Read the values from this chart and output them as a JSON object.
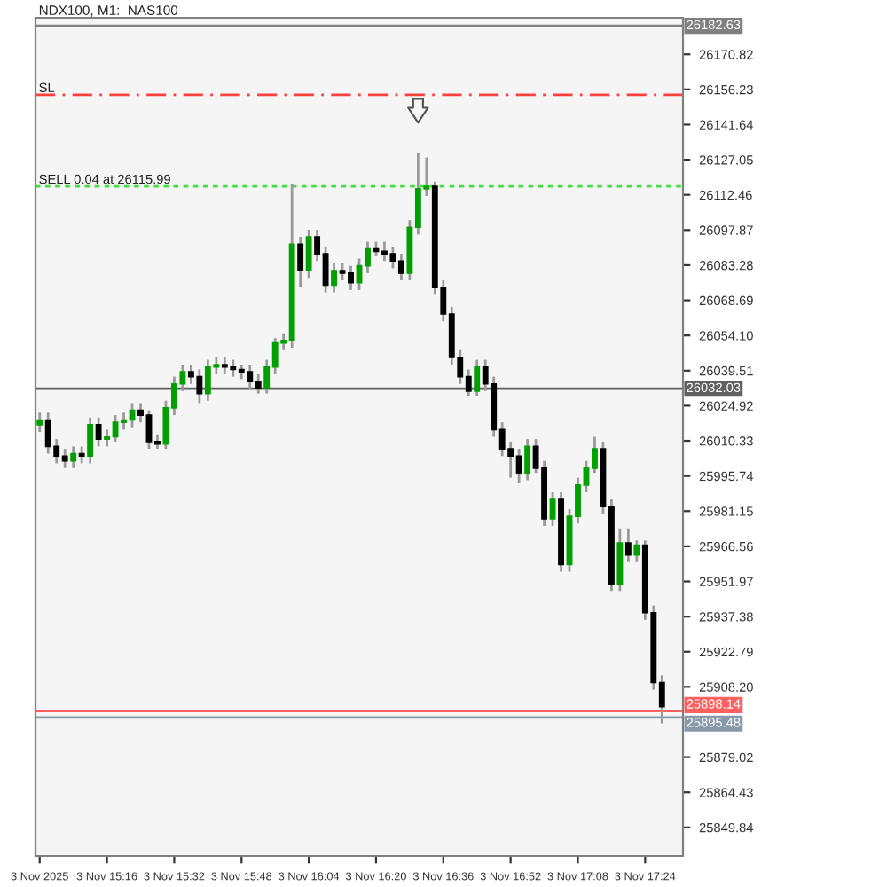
{
  "chart_data": {
    "type": "candlestick",
    "title": "NDX100, M1:  NAS100",
    "categories": [
      "3 Nov 2025",
      null,
      null,
      null,
      null,
      null,
      null,
      null,
      "3 Nov 15:16",
      null,
      null,
      null,
      null,
      null,
      null,
      null,
      "3 Nov 15:32",
      null,
      null,
      null,
      null,
      null,
      null,
      null,
      "3 Nov 15:48",
      null,
      null,
      null,
      null,
      null,
      null,
      null,
      "3 Nov 16:04",
      null,
      null,
      null,
      null,
      null,
      null,
      null,
      "3 Nov 16:20",
      null,
      null,
      null,
      null,
      null,
      null,
      null,
      "3 Nov 16:36",
      null,
      null,
      null,
      null,
      null,
      null,
      null,
      "3 Nov 16:52",
      null,
      null,
      null,
      null,
      null,
      null,
      null,
      "3 Nov 17:08",
      null,
      null,
      null,
      null,
      null,
      null,
      null,
      "3 Nov 17:24",
      null,
      null
    ],
    "ohlc": [
      [
        26017,
        26022,
        26014,
        26019
      ],
      [
        26019,
        26022,
        26005,
        26008
      ],
      [
        26008,
        26011,
        26001,
        26004
      ],
      [
        26004,
        26007,
        25999,
        26002
      ],
      [
        26002,
        26008,
        25999,
        26005
      ],
      [
        26005,
        26008,
        26001,
        26004
      ],
      [
        26004,
        26020,
        26001,
        26017
      ],
      [
        26017,
        26020,
        26008,
        26011
      ],
      [
        26011,
        26015,
        26008,
        26012
      ],
      [
        26012,
        26021,
        26010,
        26018
      ],
      [
        26018,
        26022,
        26015,
        26019
      ],
      [
        26019,
        26026,
        26016,
        26023
      ],
      [
        26023,
        26026,
        26018,
        26021
      ],
      [
        26021,
        26023,
        26007,
        26010
      ],
      [
        26010,
        26013,
        26007,
        26009
      ],
      [
        26009,
        26027,
        26007,
        26024
      ],
      [
        26024,
        26037,
        26021,
        26034
      ],
      [
        26034,
        26042,
        26031,
        26039
      ],
      [
        26039,
        26042,
        26034,
        26037
      ],
      [
        26037,
        26040,
        26026,
        26030
      ],
      [
        26030,
        26044,
        26027,
        26041
      ],
      [
        26041,
        26045,
        26038,
        26042
      ],
      [
        26042,
        26045,
        26038,
        26041
      ],
      [
        26041,
        26044,
        26037,
        26040
      ],
      [
        26040,
        26042,
        26036,
        26039
      ],
      [
        26039,
        26042,
        26032,
        26035
      ],
      [
        26035,
        26038,
        26030,
        26032
      ],
      [
        26032,
        26044,
        26030,
        26041
      ],
      [
        26041,
        26053,
        26038,
        26051
      ],
      [
        26051,
        26055,
        26048,
        26052
      ],
      [
        26052,
        26117,
        26049,
        26092
      ],
      [
        26092,
        26095,
        26074,
        26081
      ],
      [
        26081,
        26098,
        26078,
        26095
      ],
      [
        26095,
        26098,
        26085,
        26088
      ],
      [
        26088,
        26091,
        26072,
        26075
      ],
      [
        26075,
        26084,
        26072,
        26081
      ],
      [
        26081,
        26084,
        26077,
        26080
      ],
      [
        26080,
        26083,
        26073,
        26076
      ],
      [
        26076,
        26086,
        26073,
        26083
      ],
      [
        26083,
        26093,
        26080,
        26090
      ],
      [
        26090,
        26093,
        26087,
        26089
      ],
      [
        26089,
        26093,
        26085,
        26088
      ],
      [
        26088,
        26091,
        26082,
        26085
      ],
      [
        26085,
        26088,
        26077,
        26080
      ],
      [
        26080,
        26102,
        26077,
        26099
      ],
      [
        26099,
        26130,
        26096,
        26115
      ],
      [
        26115,
        26128,
        26112,
        26116
      ],
      [
        26116,
        26118,
        26071,
        26074
      ],
      [
        26074,
        26077,
        26060,
        26063
      ],
      [
        26063,
        26066,
        26042,
        26045
      ],
      [
        26045,
        26048,
        26034,
        26037
      ],
      [
        26037,
        26040,
        26029,
        26031
      ],
      [
        26031,
        26044,
        26029,
        26041
      ],
      [
        26041,
        26044,
        26031,
        26034
      ],
      [
        26034,
        26037,
        26012,
        26015
      ],
      [
        26015,
        26018,
        26004,
        26007
      ],
      [
        26007,
        26010,
        25995,
        26004
      ],
      [
        26004,
        26007,
        25993,
        25997
      ],
      [
        25997,
        26011,
        25994,
        26008
      ],
      [
        26008,
        26011,
        25997,
        25999
      ],
      [
        25999,
        26002,
        25975,
        25978
      ],
      [
        25978,
        25989,
        25975,
        25986
      ],
      [
        25986,
        25989,
        25956,
        25959
      ],
      [
        25959,
        25982,
        25956,
        25979
      ],
      [
        25979,
        25995,
        25976,
        25992
      ],
      [
        25992,
        26002,
        25989,
        25999
      ],
      [
        25999,
        26012,
        25997,
        26007
      ],
      [
        26007,
        26010,
        25980,
        25983
      ],
      [
        25983,
        25986,
        25948,
        25951
      ],
      [
        25951,
        25974,
        25948,
        25968
      ],
      [
        25968,
        25974,
        25960,
        25963
      ],
      [
        25963,
        25969,
        25960,
        25967
      ],
      [
        25967,
        25969,
        25936,
        25939
      ],
      [
        25939,
        25942,
        25907,
        25910
      ],
      [
        25910,
        25913,
        25893,
        25900
      ]
    ],
    "colors": [
      "#00a000",
      "#000000",
      "#000000",
      "#000000",
      "#00a000",
      "#000000",
      "#00a000",
      "#000000",
      "#00a000",
      "#00a000",
      "#00a000",
      "#00a000",
      "#000000",
      "#000000",
      "#000000",
      "#00a000",
      "#00a000",
      "#00a000",
      "#000000",
      "#000000",
      "#00a000",
      "#00a000",
      "#000000",
      "#000000",
      "#000000",
      "#000000",
      "#000000",
      "#00a000",
      "#00a000",
      "#00a000",
      "#00a000",
      "#000000",
      "#00a000",
      "#000000",
      "#000000",
      "#00a000",
      "#000000",
      "#000000",
      "#00a000",
      "#00a000",
      "#000000",
      "#000000",
      "#000000",
      "#000000",
      "#00a000",
      "#00a000",
      "#00a000",
      "#000000",
      "#000000",
      "#000000",
      "#000000",
      "#000000",
      "#00a000",
      "#000000",
      "#000000",
      "#000000",
      "#000000",
      "#000000",
      "#00a000",
      "#000000",
      "#000000",
      "#00a000",
      "#000000",
      "#00a000",
      "#00a000",
      "#00a000",
      "#00a000",
      "#000000",
      "#000000",
      "#00a000",
      "#000000",
      "#00a000",
      "#000000",
      "#000000",
      "#000000"
    ],
    "ylim": [
      25838,
      26186
    ],
    "yticks": [
      {
        "value": 26170.82,
        "label": "26170.82"
      },
      {
        "value": 26156.23,
        "label": "26156.23"
      },
      {
        "value": 26141.64,
        "label": "26141.64"
      },
      {
        "value": 26127.05,
        "label": "26127.05"
      },
      {
        "value": 26112.46,
        "label": "26112.46"
      },
      {
        "value": 26097.87,
        "label": "26097.87"
      },
      {
        "value": 26083.28,
        "label": "26083.28"
      },
      {
        "value": 26068.69,
        "label": "26068.69"
      },
      {
        "value": 26054.1,
        "label": "26054.10"
      },
      {
        "value": 26039.51,
        "label": "26039.51"
      },
      {
        "value": 26024.92,
        "label": "26024.92"
      },
      {
        "value": 26010.33,
        "label": "26010.33"
      },
      {
        "value": 25995.74,
        "label": "25995.74"
      },
      {
        "value": 25981.15,
        "label": "25981.15"
      },
      {
        "value": 25966.56,
        "label": "25966.56"
      },
      {
        "value": 25951.97,
        "label": "25951.97"
      },
      {
        "value": 25937.38,
        "label": "25937.38"
      },
      {
        "value": 25922.79,
        "label": "25922.79"
      },
      {
        "value": 25908.2,
        "label": "25908.20"
      },
      {
        "value": 25879.02,
        "label": "25879.02"
      },
      {
        "value": 25864.43,
        "label": "25864.43"
      },
      {
        "value": 25849.84,
        "label": "25849.84"
      }
    ],
    "ref_lines": [
      {
        "axis": "y",
        "value": 26154,
        "label": "SL",
        "color": "#ff4040",
        "line_style": "dashed"
      },
      {
        "axis": "y",
        "value": 26115.99,
        "label": "SELL 0.04 at 26115.99",
        "color": "#40e040",
        "line_style": "dotted"
      },
      {
        "axis": "y",
        "value": 26182.63,
        "label": "26182.63",
        "color": "#808080",
        "line_style": "solid"
      },
      {
        "axis": "y",
        "value": 26032.03,
        "label": "26032.03",
        "color": "#606060",
        "line_style": "solid"
      },
      {
        "axis": "y",
        "value": 25898.14,
        "label": "25898.14",
        "color": "#ff6060",
        "line_style": "solid"
      },
      {
        "axis": "y",
        "value": 25895.48,
        "label": "25895.48",
        "color": "#8899aa",
        "line_style": "solid"
      }
    ],
    "grid": false
  }
}
